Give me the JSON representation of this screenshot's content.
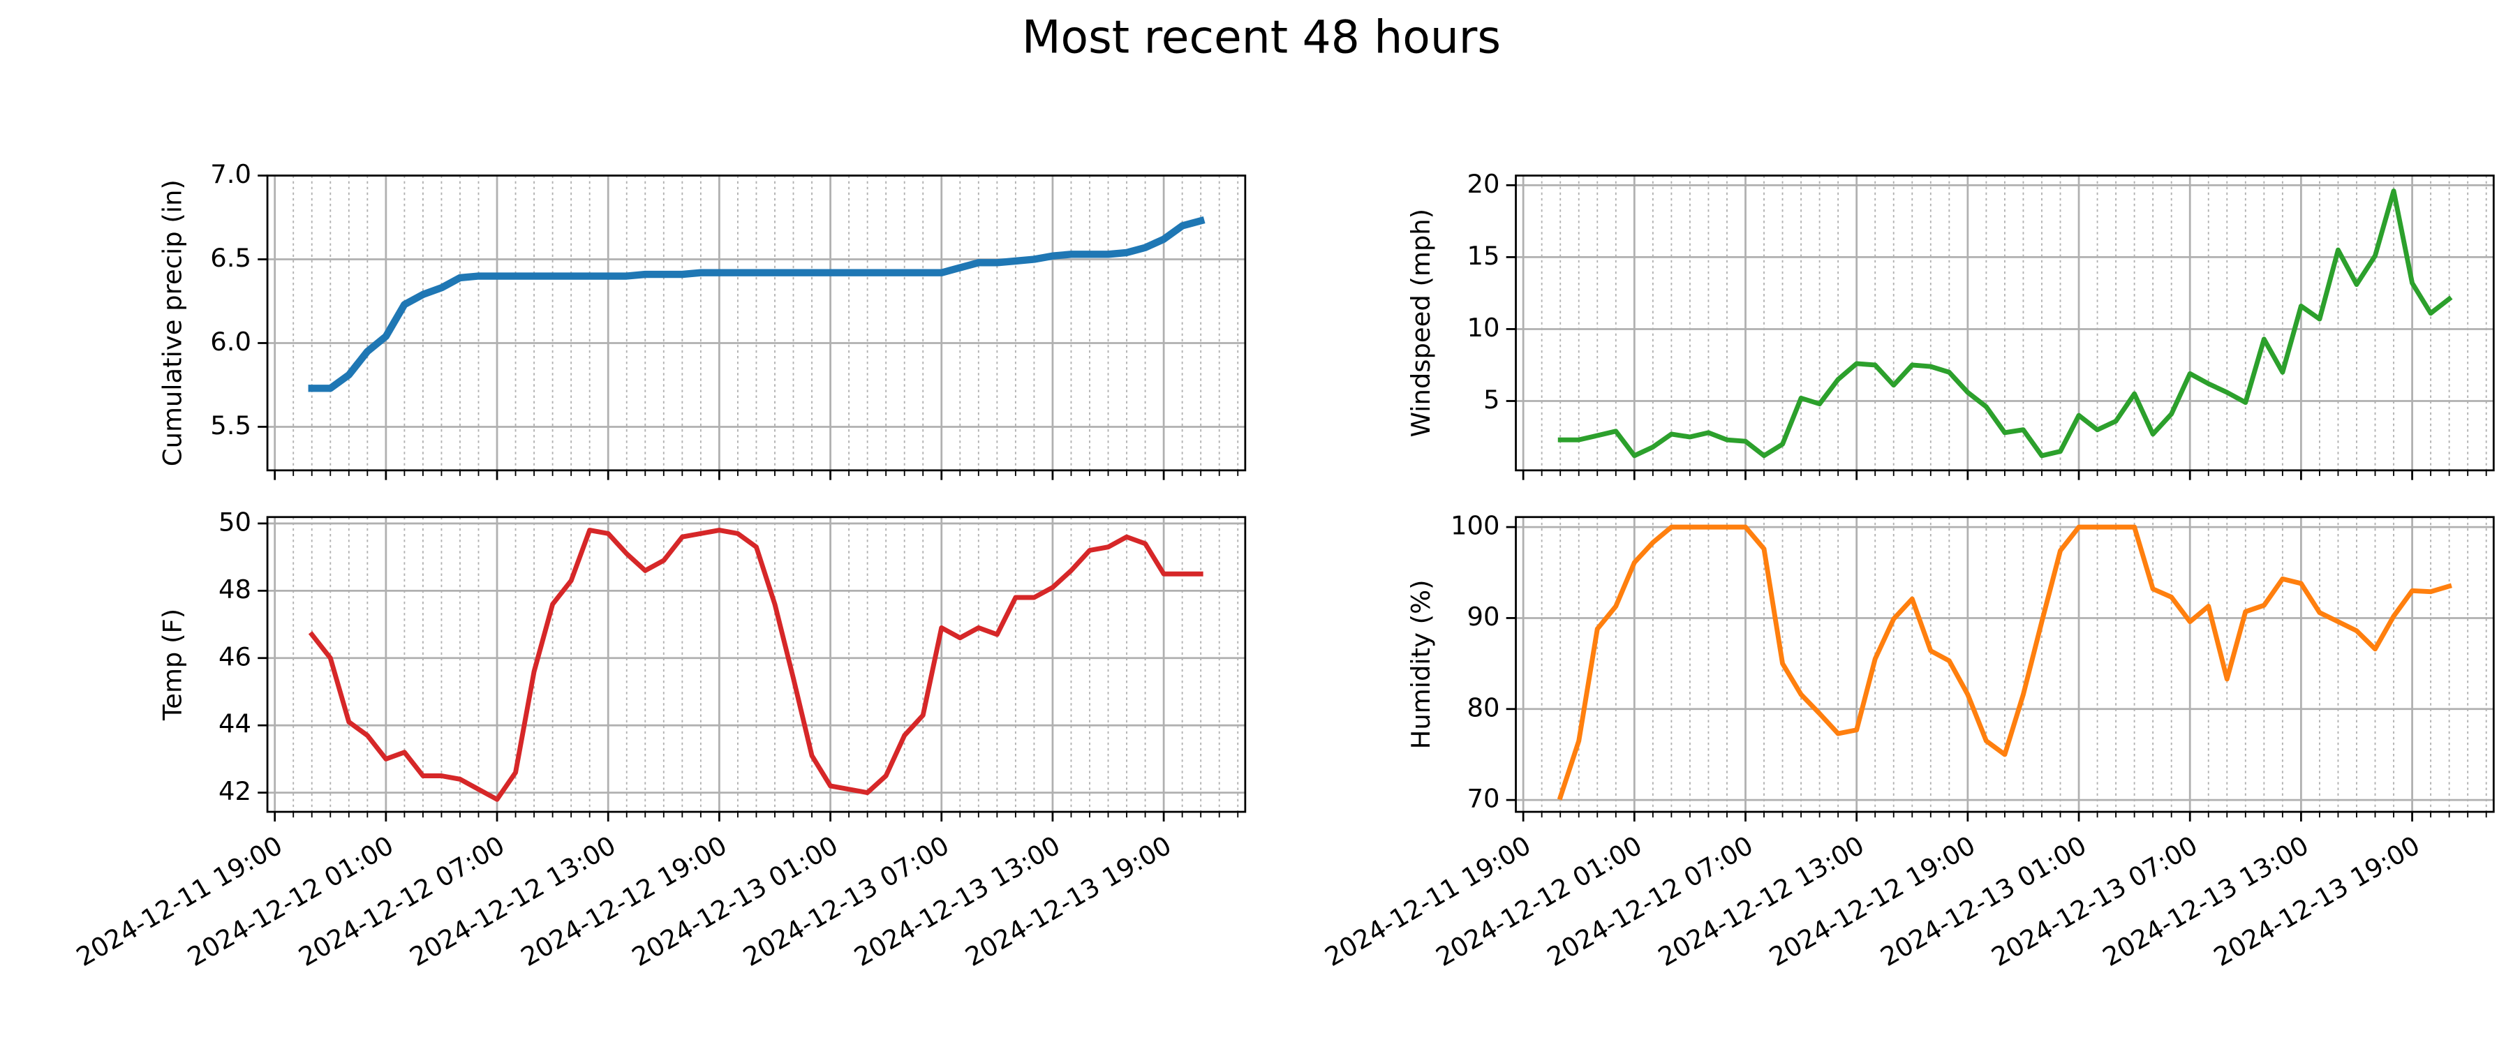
{
  "title": "Most recent 48 hours",
  "chart_data": [
    {
      "type": "line",
      "ylabel": "Cumulative precip (in)",
      "color": "#1f77b4",
      "grid": true,
      "x": [
        "2024-12-11 21:00",
        "2024-12-11 22:00",
        "2024-12-11 23:00",
        "2024-12-12 00:00",
        "2024-12-12 01:00",
        "2024-12-12 02:00",
        "2024-12-12 03:00",
        "2024-12-12 04:00",
        "2024-12-12 05:00",
        "2024-12-12 06:00",
        "2024-12-12 07:00",
        "2024-12-12 08:00",
        "2024-12-12 09:00",
        "2024-12-12 10:00",
        "2024-12-12 11:00",
        "2024-12-12 12:00",
        "2024-12-12 13:00",
        "2024-12-12 14:00",
        "2024-12-12 15:00",
        "2024-12-12 16:00",
        "2024-12-12 17:00",
        "2024-12-12 18:00",
        "2024-12-12 19:00",
        "2024-12-12 20:00",
        "2024-12-12 21:00",
        "2024-12-12 22:00",
        "2024-12-12 23:00",
        "2024-12-13 00:00",
        "2024-12-13 01:00",
        "2024-12-13 02:00",
        "2024-12-13 03:00",
        "2024-12-13 04:00",
        "2024-12-13 05:00",
        "2024-12-13 06:00",
        "2024-12-13 07:00",
        "2024-12-13 08:00",
        "2024-12-13 09:00",
        "2024-12-13 10:00",
        "2024-12-13 11:00",
        "2024-12-13 12:00",
        "2024-12-13 13:00",
        "2024-12-13 14:00",
        "2024-12-13 15:00",
        "2024-12-13 16:00",
        "2024-12-13 17:00",
        "2024-12-13 18:00",
        "2024-12-13 19:00",
        "2024-12-13 20:00",
        "2024-12-13 21:00"
      ],
      "values": [
        5.73,
        5.73,
        5.81,
        5.95,
        6.04,
        6.23,
        6.29,
        6.33,
        6.39,
        6.4,
        6.4,
        6.4,
        6.4,
        6.4,
        6.4,
        6.4,
        6.4,
        6.4,
        6.41,
        6.41,
        6.41,
        6.42,
        6.42,
        6.42,
        6.42,
        6.42,
        6.42,
        6.42,
        6.42,
        6.42,
        6.42,
        6.42,
        6.42,
        6.42,
        6.42,
        6.45,
        6.48,
        6.48,
        6.49,
        6.5,
        6.52,
        6.53,
        6.53,
        6.53,
        6.54,
        6.57,
        6.62,
        6.7,
        6.73
      ],
      "xlim": [
        "2024-12-11 18:36",
        "2024-12-13 23:24"
      ],
      "xticks": [
        "2024-12-11 19:00",
        "2024-12-12 01:00",
        "2024-12-12 07:00",
        "2024-12-12 13:00",
        "2024-12-12 19:00",
        "2024-12-13 01:00",
        "2024-12-13 07:00",
        "2024-12-13 13:00",
        "2024-12-13 19:00"
      ],
      "ylim": [
        5.24,
        7.0
      ],
      "yticks": [
        5.5,
        {
          "value": 6.0,
          "label": "6.0"
        },
        6.5,
        {
          "value": 7.0,
          "label": "7.0"
        }
      ]
    },
    {
      "type": "line",
      "ylabel": "Windspeed (mph)",
      "color": "#2ca02c",
      "grid": true,
      "x": [
        "2024-12-11 21:00",
        "2024-12-11 22:00",
        "2024-12-11 23:00",
        "2024-12-12 00:00",
        "2024-12-12 01:00",
        "2024-12-12 02:00",
        "2024-12-12 03:00",
        "2024-12-12 04:00",
        "2024-12-12 05:00",
        "2024-12-12 06:00",
        "2024-12-12 07:00",
        "2024-12-12 08:00",
        "2024-12-12 09:00",
        "2024-12-12 10:00",
        "2024-12-12 11:00",
        "2024-12-12 12:00",
        "2024-12-12 13:00",
        "2024-12-12 14:00",
        "2024-12-12 15:00",
        "2024-12-12 16:00",
        "2024-12-12 17:00",
        "2024-12-12 18:00",
        "2024-12-12 19:00",
        "2024-12-12 20:00",
        "2024-12-12 21:00",
        "2024-12-12 22:00",
        "2024-12-12 23:00",
        "2024-12-13 00:00",
        "2024-12-13 01:00",
        "2024-12-13 02:00",
        "2024-12-13 03:00",
        "2024-12-13 04:00",
        "2024-12-13 05:00",
        "2024-12-13 06:00",
        "2024-12-13 07:00",
        "2024-12-13 08:00",
        "2024-12-13 09:00",
        "2024-12-13 10:00",
        "2024-12-13 11:00",
        "2024-12-13 12:00",
        "2024-12-13 13:00",
        "2024-12-13 14:00",
        "2024-12-13 15:00",
        "2024-12-13 16:00",
        "2024-12-13 17:00",
        "2024-12-13 18:00",
        "2024-12-13 19:00",
        "2024-12-13 20:00",
        "2024-12-13 21:00"
      ],
      "values": [
        2.3,
        2.3,
        2.6,
        2.9,
        1.2,
        1.8,
        2.7,
        2.5,
        2.8,
        2.3,
        2.2,
        1.2,
        2.0,
        5.2,
        4.8,
        6.5,
        7.6,
        7.5,
        6.1,
        7.5,
        7.4,
        7.0,
        5.6,
        4.6,
        2.8,
        3.0,
        1.2,
        1.5,
        4.0,
        3.0,
        3.6,
        5.5,
        2.7,
        4.1,
        6.9,
        6.2,
        5.6,
        4.9,
        9.3,
        7.0,
        11.6,
        10.7,
        15.5,
        13.1,
        15.1,
        19.6,
        13.2,
        11.1,
        12.1
      ],
      "xlim": [
        "2024-12-11 18:36",
        "2024-12-13 23:24"
      ],
      "xticks": [
        "2024-12-11 19:00",
        "2024-12-12 01:00",
        "2024-12-12 07:00",
        "2024-12-12 13:00",
        "2024-12-12 19:00",
        "2024-12-13 01:00",
        "2024-12-13 07:00",
        "2024-12-13 13:00",
        "2024-12-13 19:00"
      ],
      "ylim": [
        0.18,
        20.67
      ],
      "yticks": [
        5,
        10,
        15,
        20
      ]
    },
    {
      "type": "line",
      "ylabel": "Temp (F)",
      "color": "#d62728",
      "grid": true,
      "x": [
        "2024-12-11 21:00",
        "2024-12-11 22:00",
        "2024-12-11 23:00",
        "2024-12-12 00:00",
        "2024-12-12 01:00",
        "2024-12-12 02:00",
        "2024-12-12 03:00",
        "2024-12-12 04:00",
        "2024-12-12 05:00",
        "2024-12-12 06:00",
        "2024-12-12 07:00",
        "2024-12-12 08:00",
        "2024-12-12 09:00",
        "2024-12-12 10:00",
        "2024-12-12 11:00",
        "2024-12-12 12:00",
        "2024-12-12 13:00",
        "2024-12-12 14:00",
        "2024-12-12 15:00",
        "2024-12-12 16:00",
        "2024-12-12 17:00",
        "2024-12-12 18:00",
        "2024-12-12 19:00",
        "2024-12-12 20:00",
        "2024-12-12 21:00",
        "2024-12-12 22:00",
        "2024-12-12 23:00",
        "2024-12-13 00:00",
        "2024-12-13 01:00",
        "2024-12-13 02:00",
        "2024-12-13 03:00",
        "2024-12-13 04:00",
        "2024-12-13 05:00",
        "2024-12-13 06:00",
        "2024-12-13 07:00",
        "2024-12-13 08:00",
        "2024-12-13 09:00",
        "2024-12-13 10:00",
        "2024-12-13 11:00",
        "2024-12-13 12:00",
        "2024-12-13 13:00",
        "2024-12-13 14:00",
        "2024-12-13 15:00",
        "2024-12-13 16:00",
        "2024-12-13 17:00",
        "2024-12-13 18:00",
        "2024-12-13 19:00",
        "2024-12-13 20:00",
        "2024-12-13 21:00"
      ],
      "values": [
        46.7,
        46.0,
        44.1,
        43.7,
        43.0,
        43.2,
        42.5,
        42.5,
        42.4,
        42.1,
        41.8,
        42.6,
        45.6,
        47.6,
        48.3,
        49.8,
        49.7,
        49.1,
        48.6,
        48.9,
        49.6,
        49.7,
        49.8,
        49.7,
        49.3,
        47.6,
        45.4,
        43.1,
        42.2,
        42.1,
        42.0,
        42.5,
        43.7,
        44.3,
        46.9,
        46.6,
        46.9,
        46.7,
        47.8,
        47.8,
        48.1,
        48.6,
        49.2,
        49.3,
        49.6,
        49.4,
        48.5,
        48.5,
        48.5
      ],
      "xlim": [
        "2024-12-11 18:36",
        "2024-12-13 23:24"
      ],
      "xticks": [
        "2024-12-11 19:00",
        "2024-12-12 01:00",
        "2024-12-12 07:00",
        "2024-12-12 13:00",
        "2024-12-12 19:00",
        "2024-12-13 01:00",
        "2024-12-13 07:00",
        "2024-12-13 13:00",
        "2024-12-13 19:00"
      ],
      "ylim": [
        41.43,
        50.19
      ],
      "yticks": [
        42,
        44,
        46,
        48,
        50
      ]
    },
    {
      "type": "line",
      "ylabel": "Humidity (%)",
      "color": "#ff7f0e",
      "grid": true,
      "x": [
        "2024-12-11 21:00",
        "2024-12-11 22:00",
        "2024-12-11 23:00",
        "2024-12-12 00:00",
        "2024-12-12 01:00",
        "2024-12-12 02:00",
        "2024-12-12 03:00",
        "2024-12-12 04:00",
        "2024-12-12 05:00",
        "2024-12-12 06:00",
        "2024-12-12 07:00",
        "2024-12-12 08:00",
        "2024-12-12 09:00",
        "2024-12-12 10:00",
        "2024-12-12 11:00",
        "2024-12-12 12:00",
        "2024-12-12 13:00",
        "2024-12-12 14:00",
        "2024-12-12 15:00",
        "2024-12-12 16:00",
        "2024-12-12 17:00",
        "2024-12-12 18:00",
        "2024-12-12 19:00",
        "2024-12-12 20:00",
        "2024-12-12 21:00",
        "2024-12-12 22:00",
        "2024-12-12 23:00",
        "2024-12-13 00:00",
        "2024-12-13 01:00",
        "2024-12-13 02:00",
        "2024-12-13 03:00",
        "2024-12-13 04:00",
        "2024-12-13 05:00",
        "2024-12-13 06:00",
        "2024-12-13 07:00",
        "2024-12-13 08:00",
        "2024-12-13 09:00",
        "2024-12-13 10:00",
        "2024-12-13 11:00",
        "2024-12-13 12:00",
        "2024-12-13 13:00",
        "2024-12-13 14:00",
        "2024-12-13 15:00",
        "2024-12-13 16:00",
        "2024-12-13 17:00",
        "2024-12-13 18:00",
        "2024-12-13 19:00",
        "2024-12-13 20:00",
        "2024-12-13 21:00"
      ],
      "values": [
        70.3,
        76.5,
        88.8,
        91.3,
        96.1,
        98.3,
        100,
        100,
        100,
        100,
        100,
        97.6,
        85.0,
        81.6,
        79.5,
        77.3,
        77.7,
        85.5,
        89.9,
        92.1,
        86.4,
        85.3,
        81.6,
        76.5,
        75.0,
        81.6,
        89.6,
        97.4,
        100,
        100,
        100,
        100,
        93.2,
        92.3,
        89.6,
        91.3,
        83.3,
        90.7,
        91.4,
        94.3,
        93.8,
        90.6,
        89.6,
        88.6,
        86.6,
        90.2,
        93.0,
        92.9,
        93.5
      ],
      "xlim": [
        "2024-12-11 18:36",
        "2024-12-13 23:24"
      ],
      "xticks": [
        "2024-12-11 19:00",
        "2024-12-12 01:00",
        "2024-12-12 07:00",
        "2024-12-12 13:00",
        "2024-12-12 19:00",
        "2024-12-13 01:00",
        "2024-12-13 07:00",
        "2024-12-13 13:00",
        "2024-12-13 19:00"
      ],
      "ylim": [
        68.7,
        101.1
      ],
      "yticks": [
        70,
        80,
        90,
        100
      ]
    }
  ]
}
